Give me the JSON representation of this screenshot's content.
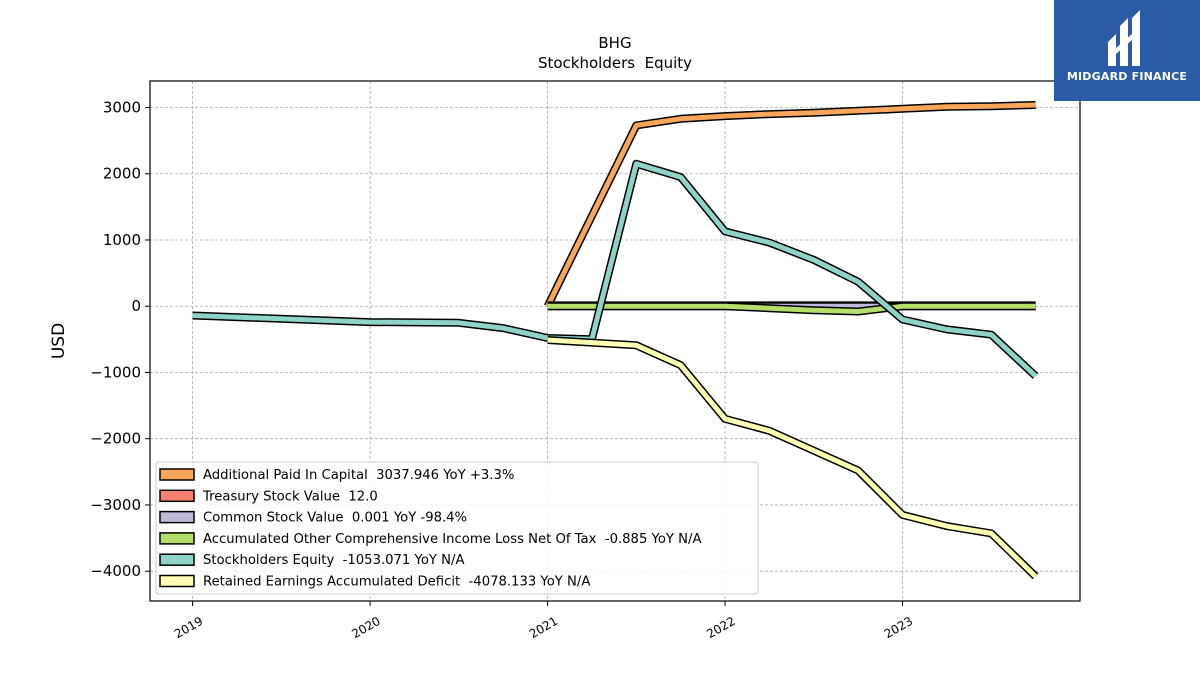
{
  "brand": {
    "name": "MIDGARD FINANCE",
    "logo_color": "#2b5aa6"
  },
  "chart_data": {
    "type": "line",
    "title": "BHG",
    "subtitle": "Stockholders  Equity",
    "ylabel": "USD",
    "xlabel": "",
    "x_ticks": [
      "2019",
      "2020",
      "2021",
      "2022",
      "2023"
    ],
    "y_ticks": [
      3000,
      2000,
      1000,
      0,
      -1000,
      -2000,
      -3000,
      -4000
    ],
    "ylim": [
      -4450,
      3400
    ],
    "xlim": [
      2018.76,
      2024.0
    ],
    "grid": true,
    "legend_position": "lower-left",
    "series": [
      {
        "name": "Additional Paid In Capital",
        "legend": "Additional Paid In Capital  3037.946 YoY +3.3%",
        "color": "#f9a65a",
        "x": [
          2021.0,
          2021.5,
          2021.75,
          2022.0,
          2022.25,
          2022.5,
          2022.75,
          2023.0,
          2023.25,
          2023.5,
          2023.75
        ],
        "y": [
          0,
          2730,
          2830,
          2870,
          2900,
          2920,
          2950,
          2980,
          3010,
          3020,
          3038
        ]
      },
      {
        "name": "Treasury Stock Value",
        "legend": "Treasury Stock Value  12.0",
        "color": "#fb8072",
        "x": [
          2021.0,
          2023.75
        ],
        "y": [
          12,
          12
        ]
      },
      {
        "name": "Common Stock Value",
        "legend": "Common Stock Value  0.001 YoY -98.4%",
        "color": "#bebada",
        "x": [
          2021.0,
          2021.5,
          2022.0,
          2022.5,
          2022.75,
          2023.0,
          2023.75
        ],
        "y": [
          0,
          0,
          0,
          0,
          0,
          0,
          0
        ]
      },
      {
        "name": "Accumulated Other Comprehensive Income Loss Net Of Tax",
        "legend": "Accumulated Other Comprehensive Income Loss Net Of Tax  -0.885 YoY N/A",
        "color": "#b3de69",
        "x": [
          2021.0,
          2021.5,
          2022.0,
          2022.25,
          2022.5,
          2022.75,
          2023.0,
          2023.25,
          2023.5,
          2023.75
        ],
        "y": [
          0,
          0,
          0,
          -30,
          -60,
          -80,
          -1,
          -1,
          -1,
          -1
        ]
      },
      {
        "name": "Stockholders Equity",
        "legend": "Stockholders Equity  -1053.071 YoY N/A",
        "color": "#8dd3c7",
        "x": [
          2019.0,
          2020.0,
          2020.5,
          2020.75,
          2021.0,
          2021.25,
          2021.5,
          2021.75,
          2022.0,
          2022.25,
          2022.5,
          2022.75,
          2023.0,
          2023.25,
          2023.5,
          2023.75
        ],
        "y": [
          -140,
          -240,
          -250,
          -330,
          -480,
          -500,
          2150,
          1950,
          1130,
          960,
          700,
          370,
          -200,
          -350,
          -430,
          -1053
        ]
      },
      {
        "name": "Retained Earnings Accumulated Deficit",
        "legend": "Retained Earnings Accumulated Deficit  -4078.133 YoY N/A",
        "color": "#ffffb3",
        "x": [
          2021.0,
          2021.5,
          2021.75,
          2022.0,
          2022.25,
          2022.5,
          2022.75,
          2023.0,
          2023.25,
          2023.5,
          2023.75
        ],
        "y": [
          -510,
          -590,
          -890,
          -1700,
          -1880,
          -2180,
          -2480,
          -3150,
          -3320,
          -3430,
          -4078
        ]
      }
    ]
  }
}
